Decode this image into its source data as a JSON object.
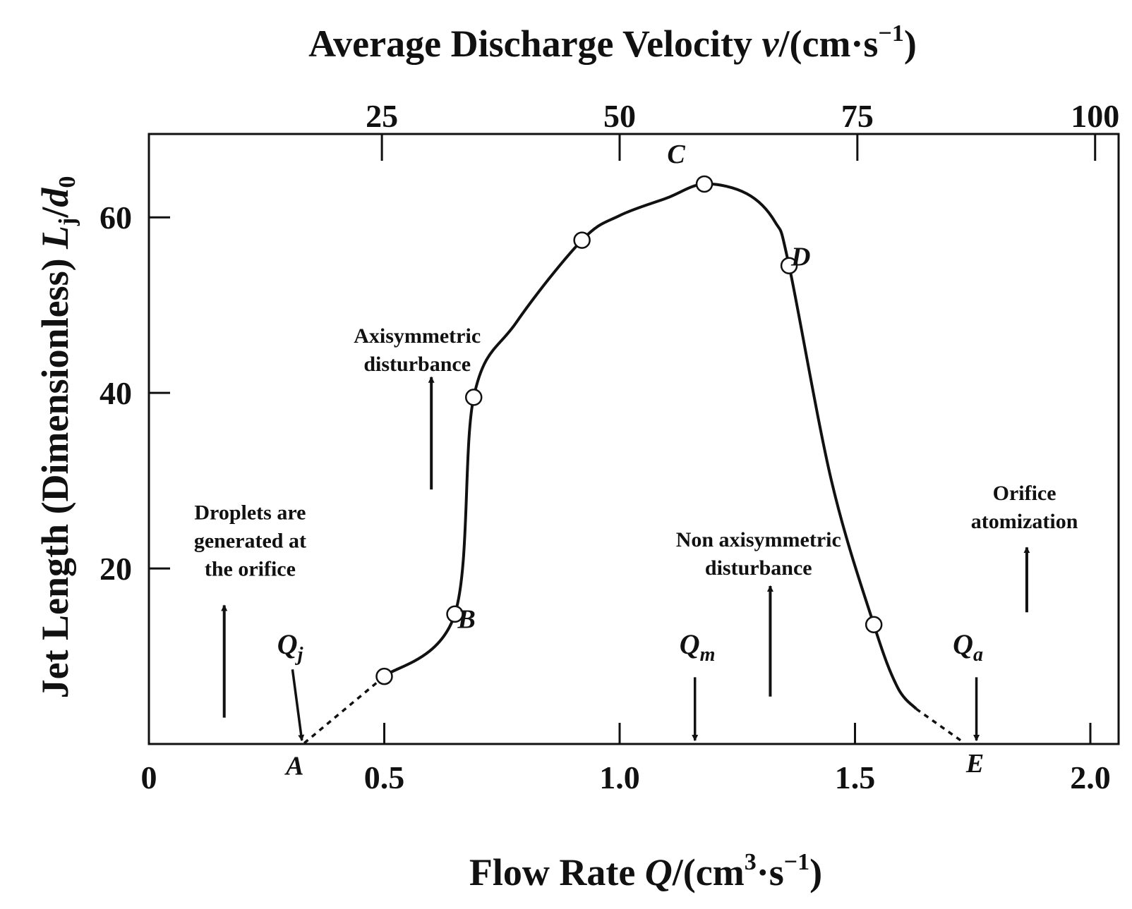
{
  "chart_data": {
    "type": "line",
    "title": "",
    "xlabel": {
      "main": "Flow Rate ",
      "var": "Q",
      "unit_open": "/(cm",
      "sup1": "3",
      "unit_mid": "·s",
      "sup2": "−1",
      "unit_close": ")"
    },
    "ylabel": {
      "main": "Jet Length (Dimensionless) ",
      "var": "L",
      "sub1": "j",
      "slash": "/",
      "var2": "d",
      "sub2": "0"
    },
    "x2label": {
      "main": "Average Discharge Velocity ",
      "var": "v",
      "unit_open": "/(cm·s",
      "sup": "−1",
      "unit_close": ")"
    },
    "xlim": [
      0,
      2.06
    ],
    "ylim": [
      0,
      69.5
    ],
    "x_ticks": [
      {
        "value": 0,
        "label": "0"
      },
      {
        "value": 0.5,
        "label": "0.5"
      },
      {
        "value": 1.0,
        "label": "1.0"
      },
      {
        "value": 1.5,
        "label": "1.5"
      },
      {
        "value": 2.0,
        "label": "2.0"
      }
    ],
    "y_ticks": [
      {
        "value": 20,
        "label": "20"
      },
      {
        "value": 40,
        "label": "40"
      },
      {
        "value": 60,
        "label": "60"
      }
    ],
    "x2_ticks": [
      {
        "value": 25,
        "label": "25"
      },
      {
        "value": 50,
        "label": "50"
      },
      {
        "value": 75,
        "label": "75"
      },
      {
        "value": 100,
        "label": "100"
      }
    ],
    "x2_mapping": {
      "per_unit_Q": 49.5,
      "offset": 0.5
    },
    "series": [
      {
        "solid": [
          [
            0.5,
            7.7
          ],
          [
            0.65,
            14.8
          ],
          [
            0.69,
            39.5
          ],
          [
            0.78,
            48
          ],
          [
            0.92,
            57.4
          ],
          [
            1.0,
            60.2
          ],
          [
            1.1,
            62.2
          ],
          [
            1.18,
            63.8
          ],
          [
            1.27,
            62.7
          ],
          [
            1.33,
            59.5
          ],
          [
            1.36,
            54.5
          ],
          [
            1.45,
            30
          ],
          [
            1.54,
            13.6
          ],
          [
            1.59,
            6.5
          ],
          [
            1.63,
            4
          ]
        ],
        "dashed_left": [
          [
            0.33,
            0.1
          ],
          [
            0.5,
            7.7
          ]
        ],
        "dashed_right": [
          [
            1.63,
            4
          ],
          [
            1.73,
            0.2
          ]
        ],
        "markers": [
          [
            0.5,
            7.7
          ],
          [
            0.65,
            14.8
          ],
          [
            0.69,
            39.5
          ],
          [
            0.92,
            57.4
          ],
          [
            1.18,
            63.8
          ],
          [
            1.36,
            54.5
          ],
          [
            1.54,
            13.6
          ]
        ]
      }
    ],
    "point_labels": [
      {
        "label": "A",
        "x": 0.31,
        "y": -3.5
      },
      {
        "label": "B",
        "x": 0.675,
        "y": 13.2
      },
      {
        "label": "C",
        "x": 1.12,
        "y": 66.2
      },
      {
        "label": "D",
        "x": 1.385,
        "y": 54.5
      },
      {
        "label": "E",
        "x": 1.755,
        "y": -3.2
      }
    ],
    "q_markers": [
      {
        "var": "Q",
        "sub": "j",
        "x": 0.3,
        "y": 10.3,
        "arrow": [
          [
            0.305,
            8.5
          ],
          [
            0.325,
            0.4
          ]
        ]
      },
      {
        "var": "Q",
        "sub": "m",
        "x": 1.165,
        "y": 10.3,
        "arrow": [
          [
            1.16,
            7.6
          ],
          [
            1.16,
            0.4
          ]
        ]
      },
      {
        "var": "Q",
        "sub": "a",
        "x": 1.74,
        "y": 10.3,
        "arrow": [
          [
            1.758,
            7.6
          ],
          [
            1.758,
            0.4
          ]
        ]
      }
    ],
    "annotations": [
      {
        "lines": [
          "Droplets are",
          "generated at",
          "the orifice"
        ],
        "x": 0.215,
        "y": 25.6,
        "arrow": [
          [
            0.16,
            3
          ],
          [
            0.16,
            15.8
          ]
        ]
      },
      {
        "lines": [
          "Axisymmetric",
          "disturbance"
        ],
        "x": 0.57,
        "y": 45.7,
        "arrow": [
          [
            0.6,
            29
          ],
          [
            0.6,
            41.8
          ]
        ]
      },
      {
        "lines": [
          "Non axisymmetric",
          "disturbance"
        ],
        "x": 1.295,
        "y": 22.5,
        "arrow": [
          [
            1.32,
            5.4
          ],
          [
            1.32,
            18
          ]
        ]
      },
      {
        "lines": [
          "Orifice",
          "atomization"
        ],
        "x": 1.86,
        "y": 27.8,
        "arrow": [
          [
            1.865,
            15
          ],
          [
            1.865,
            22.4
          ]
        ]
      }
    ]
  }
}
